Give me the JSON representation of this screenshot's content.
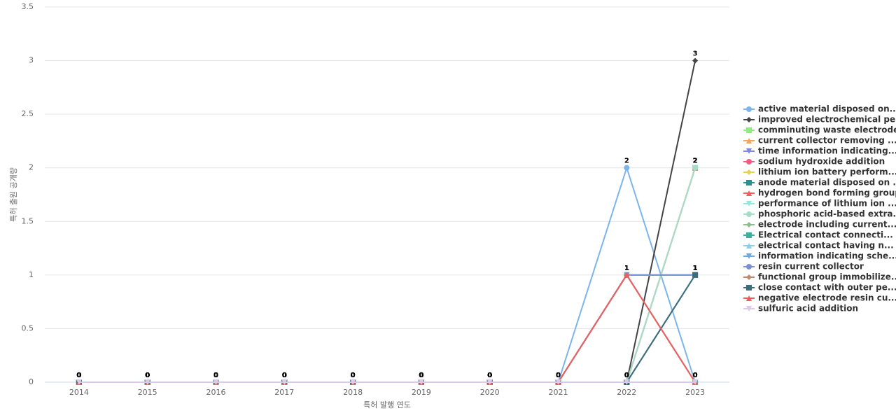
{
  "chart_data": {
    "type": "line",
    "x_label": "특허 발행 연도",
    "y_label": "특허 출원 공개량",
    "categories": [
      "2014",
      "2015",
      "2016",
      "2017",
      "2018",
      "2019",
      "2020",
      "2021",
      "2022",
      "2023"
    ],
    "ylim": [
      0,
      3.5
    ],
    "yticks": [
      0,
      0.5,
      1,
      1.5,
      2,
      2.5,
      3,
      3.5
    ],
    "grid": true,
    "legend": "right",
    "series": [
      {
        "name": "active material disposed on...",
        "color": "#7cb5ec",
        "marker": "circle",
        "values": [
          0,
          0,
          0,
          0,
          0,
          0,
          0,
          0,
          2,
          0
        ]
      },
      {
        "name": "improved electrochemical pe...",
        "color": "#434348",
        "marker": "diamond",
        "values": [
          0,
          0,
          0,
          0,
          0,
          0,
          0,
          0,
          0,
          3
        ]
      },
      {
        "name": "comminuting waste electrode...",
        "color": "#90ed7d",
        "marker": "square",
        "values": [
          0,
          0,
          0,
          0,
          0,
          0,
          0,
          0,
          0,
          2
        ]
      },
      {
        "name": "current collector removing ...",
        "color": "#f7a35c",
        "marker": "triangle",
        "values": [
          0,
          0,
          0,
          0,
          0,
          0,
          0,
          0,
          0,
          2
        ]
      },
      {
        "name": "time information indicating...",
        "color": "#8085e9",
        "marker": "triangle-down",
        "values": [
          0,
          0,
          0,
          0,
          0,
          0,
          0,
          0,
          1,
          1
        ]
      },
      {
        "name": "sodium hydroxide addition",
        "color": "#f15c80",
        "marker": "circle",
        "values": [
          0,
          0,
          0,
          0,
          0,
          0,
          0,
          0,
          1,
          0
        ]
      },
      {
        "name": "lithium ion battery perform...",
        "color": "#e4d354",
        "marker": "diamond",
        "values": [
          0,
          0,
          0,
          0,
          0,
          0,
          0,
          0,
          0,
          0
        ]
      },
      {
        "name": "anode material disposed on ...",
        "color": "#2b908f",
        "marker": "square",
        "values": [
          0,
          0,
          0,
          0,
          0,
          0,
          0,
          0,
          0,
          1
        ]
      },
      {
        "name": "hydrogen bond forming group",
        "color": "#f45b5b",
        "marker": "triangle",
        "values": [
          0,
          0,
          0,
          0,
          0,
          0,
          0,
          0,
          0,
          2
        ]
      },
      {
        "name": "performance of lithium ion ...",
        "color": "#91e8e1",
        "marker": "triangle-down",
        "values": [
          0,
          0,
          0,
          0,
          0,
          0,
          0,
          0,
          0,
          2
        ]
      },
      {
        "name": "phosphoric acid-based extra...",
        "color": "#a8dcc8",
        "marker": "circle",
        "values": [
          0,
          0,
          0,
          0,
          0,
          0,
          0,
          0,
          0,
          2
        ]
      },
      {
        "name": "electrode including current...",
        "color": "#8fbc8f",
        "marker": "diamond",
        "values": [
          0,
          0,
          0,
          0,
          0,
          0,
          0,
          0,
          0,
          0
        ]
      },
      {
        "name": "Electrical contact connecti...",
        "color": "#3cb09f",
        "marker": "square",
        "values": [
          0,
          0,
          0,
          0,
          0,
          0,
          0,
          0,
          0,
          0
        ]
      },
      {
        "name": "electrical contact having n...",
        "color": "#87ceeb",
        "marker": "triangle",
        "values": [
          0,
          0,
          0,
          0,
          0,
          0,
          0,
          0,
          0,
          0
        ]
      },
      {
        "name": "information indicating sche...",
        "color": "#6fa8dc",
        "marker": "triangle-down",
        "values": [
          0,
          0,
          0,
          0,
          0,
          0,
          0,
          0,
          1,
          1
        ]
      },
      {
        "name": "resin current collector",
        "color": "#7b8fd4",
        "marker": "circle",
        "values": [
          0,
          0,
          0,
          0,
          0,
          0,
          0,
          0,
          1,
          1
        ]
      },
      {
        "name": "functional group immobilize...",
        "color": "#c08a6e",
        "marker": "diamond",
        "values": [
          0,
          0,
          0,
          0,
          0,
          0,
          0,
          0,
          1,
          0
        ]
      },
      {
        "name": "close contact with outer pe...",
        "color": "#3d6b7e",
        "marker": "square",
        "values": [
          0,
          0,
          0,
          0,
          0,
          0,
          0,
          0,
          0,
          1
        ]
      },
      {
        "name": "negative electrode resin cu...",
        "color": "#e86060",
        "marker": "triangle",
        "values": [
          0,
          0,
          0,
          0,
          0,
          0,
          0,
          0,
          1,
          0
        ]
      },
      {
        "name": "sulfuric acid addition",
        "color": "#dcc8e8",
        "marker": "triangle-down",
        "values": [
          0,
          0,
          0,
          0,
          0,
          0,
          0,
          0,
          0,
          0
        ]
      }
    ]
  }
}
